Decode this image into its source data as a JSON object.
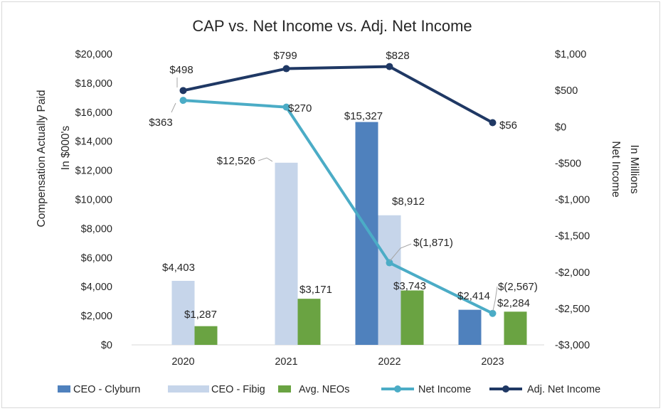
{
  "chart_data": {
    "type": "bar",
    "title": "CAP vs. Net Income vs. Adj. Net Income",
    "categories": [
      "2020",
      "2021",
      "2022",
      "2023"
    ],
    "y_left": {
      "label_line1": "Compensation Actually Paid",
      "label_line2": "In $000's",
      "range": [
        0,
        20000
      ],
      "ticks": [
        0,
        2000,
        4000,
        6000,
        8000,
        10000,
        12000,
        14000,
        16000,
        18000,
        20000
      ],
      "tick_labels": [
        "$0",
        "$2,000",
        "$4,000",
        "$6,000",
        "$8,000",
        "$10,000",
        "$12,000",
        "$14,000",
        "$16,000",
        "$18,000",
        "$20,000"
      ]
    },
    "y_right": {
      "label_line1": "Net Income",
      "label_line2": "In Millions",
      "range": [
        -3000,
        1000
      ],
      "ticks": [
        1000,
        500,
        0,
        -500,
        -1000,
        -1500,
        -2000,
        -2500,
        -3000
      ],
      "tick_labels": [
        "$1,000",
        "$500",
        "$0",
        "-$500",
        "-$1,000",
        "-$1,500",
        "-$2,000",
        "-$2,500",
        "-$3,000"
      ]
    },
    "bar_series": [
      {
        "name": "CEO - Clyburn",
        "color": "#4f81bd",
        "values": [
          null,
          null,
          15327,
          2414
        ],
        "labels": [
          "",
          "",
          "$15,327",
          "$2,414"
        ]
      },
      {
        "name": "CEO - Fibig",
        "color": "#c6d5ea",
        "values": [
          4403,
          12526,
          8912,
          null
        ],
        "labels": [
          "$4,403",
          "$12,526",
          "$8,912",
          ""
        ]
      },
      {
        "name": "Avg. NEOs",
        "color": "#6aa342",
        "values": [
          1287,
          3171,
          3743,
          2284
        ],
        "labels": [
          "$1,287",
          "$3,171",
          "$3,743",
          "$2,284"
        ]
      }
    ],
    "line_series": [
      {
        "name": "Net Income",
        "color": "#4bacc6",
        "values": [
          363,
          270,
          -1871,
          -2567
        ],
        "labels": [
          "$363",
          "$270",
          "$(1,871)",
          "$(2,567)"
        ]
      },
      {
        "name": "Adj. Net Income",
        "color": "#1f3864",
        "values": [
          498,
          799,
          828,
          56
        ],
        "labels": [
          "$498",
          "$799",
          "$828",
          "$56"
        ]
      }
    ],
    "legend": [
      "CEO - Clyburn",
      "CEO - Fibig",
      "Avg. NEOs",
      "Net Income",
      "Adj. Net Income"
    ],
    "legend_position": "bottom",
    "gridlines": false
  }
}
